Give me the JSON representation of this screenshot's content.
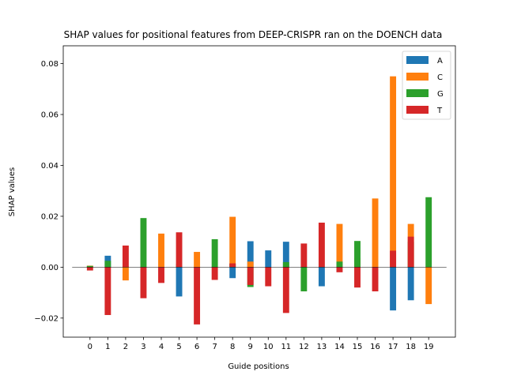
{
  "chart_data": {
    "type": "bar",
    "stacked": true,
    "title": "SHAP values for positional features from DEEP-CRISPR ran on the DOENCH data",
    "xlabel": "Guide positions",
    "ylabel": "SHAP values",
    "categories": [
      "0",
      "1",
      "2",
      "3",
      "4",
      "5",
      "6",
      "7",
      "8",
      "9",
      "10",
      "11",
      "12",
      "13",
      "14",
      "15",
      "16",
      "17",
      "18",
      "19"
    ],
    "ylim": [
      -0.0275,
      0.087
    ],
    "yticks": [
      -0.02,
      0.0,
      0.02,
      0.04,
      0.06,
      0.08
    ],
    "ytick_labels": [
      "−0.02",
      "0.00",
      "0.02",
      "0.04",
      "0.06",
      "0.08"
    ],
    "zero_line": true,
    "grid": false,
    "legend_position": "top-right",
    "series": [
      {
        "name": "A",
        "color": "#1f77b4",
        "values": [
          0.0003,
          0.0045,
          0.0003,
          -0.0002,
          0.0,
          -0.0115,
          -0.0002,
          -0.0002,
          -0.0043,
          0.0102,
          0.0066,
          0.01,
          0.0,
          -0.0075,
          0.0,
          0.0,
          0.0,
          -0.017,
          -0.013,
          0.0
        ]
      },
      {
        "name": "C",
        "color": "#ff7f0e",
        "values": [
          0.0006,
          -0.0002,
          -0.0052,
          0.0,
          0.0132,
          0.0,
          0.006,
          0.0,
          0.0198,
          0.0022,
          0.0,
          0.0,
          0.0,
          0.0,
          0.017,
          0.0036,
          0.027,
          0.075,
          0.017,
          -0.0145
        ]
      },
      {
        "name": "G",
        "color": "#2ca02c",
        "values": [
          0.0005,
          0.0025,
          0.0,
          0.0193,
          0.0,
          0.0013,
          0.0,
          0.011,
          0.0013,
          -0.0078,
          0.0,
          0.002,
          -0.0095,
          0.0,
          0.0022,
          0.0103,
          0.0,
          0.0,
          0.01,
          0.0275
        ]
      },
      {
        "name": "T",
        "color": "#d62728",
        "values": [
          -0.0013,
          -0.0188,
          0.0085,
          -0.0122,
          -0.0062,
          0.0137,
          -0.0225,
          -0.005,
          0.0015,
          -0.007,
          -0.0075,
          -0.018,
          0.0093,
          0.0175,
          -0.002,
          -0.008,
          -0.0095,
          0.0065,
          0.012,
          0.0
        ]
      }
    ]
  }
}
